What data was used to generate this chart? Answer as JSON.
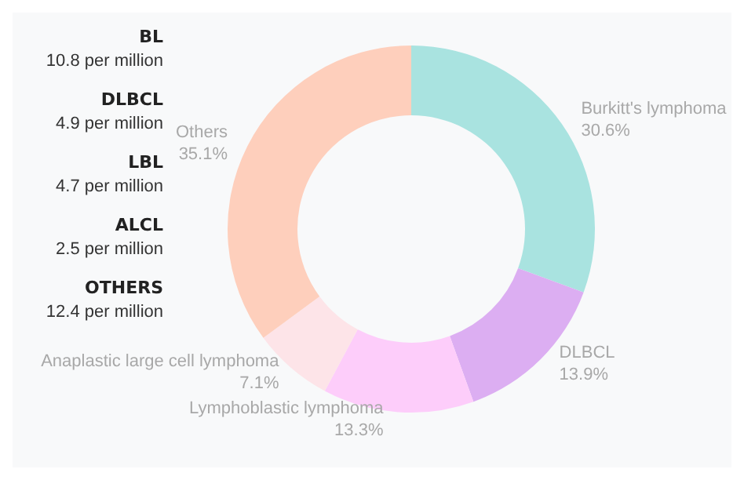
{
  "chart_data": {
    "type": "donut",
    "categories": [
      "Burkitt's lymphoma",
      "DLBCL",
      "Lymphoblastic lymphoma",
      "Anaplastic large cell lymphoma",
      "Others"
    ],
    "values": [
      30.6,
      13.9,
      13.3,
      7.1,
      35.1
    ],
    "colors": [
      "#a9e3e0",
      "#dcaef2",
      "#fdcdfa",
      "#fde4e8",
      "#fecfbc"
    ],
    "value_labels": [
      "30.6%",
      "13.9%",
      "13.3%",
      "7.1%",
      "35.1%"
    ],
    "legend": false,
    "annotations": [
      "BL\n10.8 per million",
      "DLBCL\n4.9 per million",
      "LBL\n4.7 per million",
      "ALCL\n2.5 per million",
      "OTHERS\n12.4 per million"
    ]
  }
}
